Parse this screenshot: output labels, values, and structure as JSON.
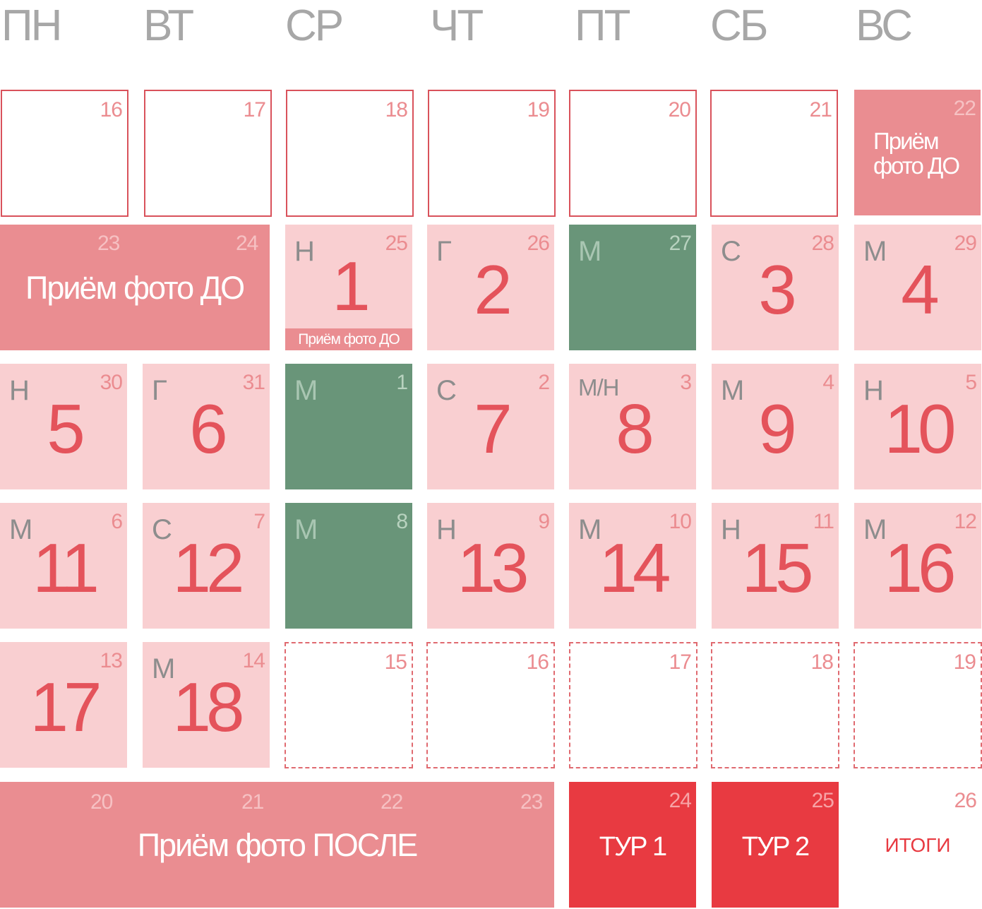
{
  "weekdays": [
    "ПН",
    "ВТ",
    "СР",
    "ЧТ",
    "ПТ",
    "СБ",
    "ВС"
  ],
  "row1": {
    "days": [
      "16",
      "17",
      "18",
      "19",
      "20",
      "21",
      "22"
    ],
    "sunday_label_line1": "Приём",
    "sunday_label_line2": "фото ДО"
  },
  "row2": {
    "banner": {
      "days": [
        "23",
        "24"
      ],
      "label": "Приём фото ДО"
    },
    "cells": [
      {
        "small": "25",
        "code": "Н",
        "big": "1",
        "note": "Приём фото ДО"
      },
      {
        "small": "26",
        "code": "Г",
        "big": "2"
      },
      {
        "small": "27",
        "code": "М"
      },
      {
        "small": "28",
        "code": "С",
        "big": "3"
      },
      {
        "small": "29",
        "code": "М",
        "big": "4"
      }
    ]
  },
  "row3": {
    "cells": [
      {
        "small": "30",
        "code": "Н",
        "big": "5"
      },
      {
        "small": "31",
        "code": "Г",
        "big": "6"
      },
      {
        "small": "1",
        "code": "М"
      },
      {
        "small": "2",
        "code": "С",
        "big": "7"
      },
      {
        "small": "3",
        "code": "М/Н",
        "big": "8"
      },
      {
        "small": "4",
        "code": "М",
        "big": "9"
      },
      {
        "small": "5",
        "code": "Н",
        "big": "10"
      }
    ]
  },
  "row4": {
    "cells": [
      {
        "small": "6",
        "code": "М",
        "big": "11"
      },
      {
        "small": "7",
        "code": "С",
        "big": "12"
      },
      {
        "small": "8",
        "code": "М"
      },
      {
        "small": "9",
        "code": "Н",
        "big": "13"
      },
      {
        "small": "10",
        "code": "М",
        "big": "14"
      },
      {
        "small": "11",
        "code": "Н",
        "big": "15"
      },
      {
        "small": "12",
        "code": "М",
        "big": "16"
      }
    ]
  },
  "row5": {
    "cells": [
      {
        "small": "13",
        "big": "17"
      },
      {
        "small": "14",
        "code": "М",
        "big": "18"
      },
      {
        "small": "15"
      },
      {
        "small": "16"
      },
      {
        "small": "17"
      },
      {
        "small": "18"
      },
      {
        "small": "19"
      }
    ]
  },
  "row6": {
    "banner": {
      "days": [
        "20",
        "21",
        "22",
        "23"
      ],
      "label": "Приём фото ПОСЛЕ"
    },
    "tour1": {
      "day": "24",
      "label": "ТУР 1"
    },
    "tour2": {
      "day": "25",
      "label": "ТУР 2"
    },
    "results": {
      "day": "26",
      "label": "ИТОГИ"
    }
  },
  "colors": {
    "outline_red": "#d9525b",
    "light_pink": "#f9cfd1",
    "rose": "#ea8d91",
    "green": "#699579",
    "red": "#e83a41",
    "header_gray": "#a7a7a7",
    "big_number": "#e4535b"
  }
}
